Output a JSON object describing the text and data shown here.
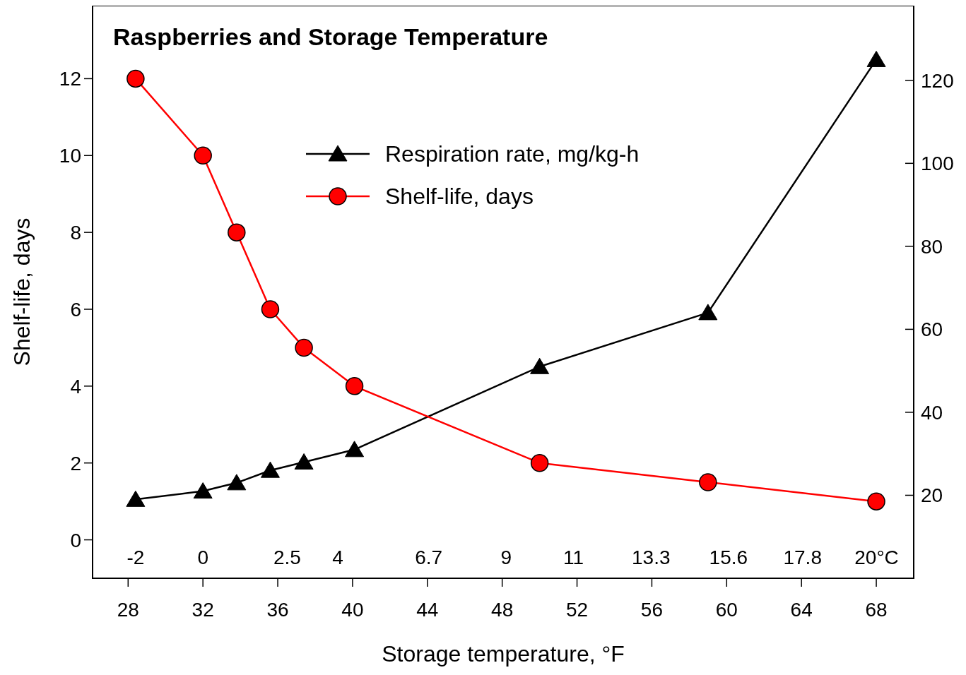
{
  "chart_data": {
    "type": "line",
    "title": "Raspberries and Storage Temperature",
    "xlabel": "Storage temperature, °F",
    "ylabel": "Shelf-life, days",
    "x": [
      28.4,
      32,
      33.8,
      35.6,
      37.4,
      40.1,
      50,
      59,
      68
    ],
    "series": [
      {
        "name": "Respiration rate, mg/kg-h",
        "color": "#000000",
        "marker": "triangle",
        "axis": "y2",
        "values": [
          19,
          21,
          23,
          26,
          28,
          31,
          51,
          64,
          125
        ]
      },
      {
        "name": "Shelf-life, days",
        "color": "#ff0000",
        "marker": "circle",
        "values": [
          12,
          10,
          8,
          6,
          5,
          4,
          2,
          1.5,
          1
        ]
      }
    ],
    "xlim": [
      26.1,
      70
    ],
    "xticks": [
      28,
      32,
      36,
      40,
      44,
      48,
      52,
      56,
      60,
      64,
      68
    ],
    "x2lim": [
      -3.28,
      21.1
    ],
    "x2ticks": [
      -2,
      0,
      2.5,
      4,
      6.7,
      9,
      11,
      13.3,
      15.6,
      17.8,
      {
        "value": 20,
        "label": "20°C"
      }
    ],
    "ylim": [
      -1,
      13.9
    ],
    "yticks": [
      0,
      2,
      4,
      6,
      8,
      10,
      12
    ],
    "y2lim": [
      0,
      138
    ],
    "y2ticks": [
      20,
      40,
      60,
      80,
      100,
      120
    ],
    "legend": "top",
    "grid": false
  }
}
